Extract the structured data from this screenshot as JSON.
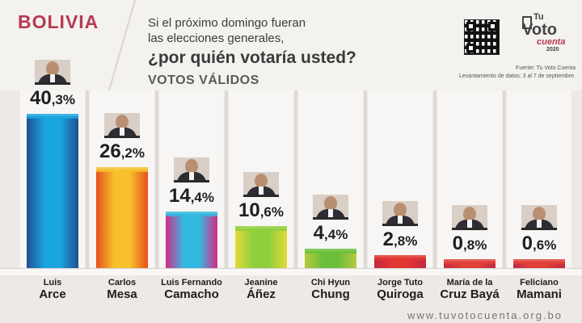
{
  "header": {
    "country": "BOLIVIA",
    "question_line1": "Si el próximo domingo fueran",
    "question_line2": "las elecciones generales,",
    "question_main": "¿por quién votaría usted?",
    "subtitle": "VOTOS VÁLIDOS",
    "source": "Fuente: Tu Voto Cuenta",
    "survey_dates": "Levantamiento de datos: 3 al 7 de septiembre."
  },
  "logo": {
    "tu": "Tu",
    "voto": "Voto",
    "cuenta": "cuenta",
    "year": "2020"
  },
  "footer": {
    "url": "www.tuvotocuenta.org.bo"
  },
  "chart_data": {
    "type": "bar",
    "categories": [
      "Luis Arce",
      "Carlos Mesa",
      "Luis Fernando Camacho",
      "Jeanine Áñez",
      "Chi Hyun Chung",
      "Jorge Tuto Quiroga",
      "María de la Cruz Bayá",
      "Feliciano Mamani"
    ],
    "values": [
      40.3,
      26.2,
      14.4,
      10.6,
      4.4,
      2.8,
      0.8,
      0.6
    ],
    "value_labels": [
      {
        "int": "40",
        "dec": ",3%"
      },
      {
        "int": "26",
        "dec": ",2%"
      },
      {
        "int": "14",
        "dec": ",4%"
      },
      {
        "int": "10",
        "dec": ",6%"
      },
      {
        "int": "4",
        "dec": ",4%"
      },
      {
        "int": "2",
        "dec": ",8%"
      },
      {
        "int": "0",
        "dec": ",8%"
      },
      {
        "int": "0",
        "dec": ",6%"
      }
    ],
    "name_lines": [
      {
        "first": "Luis",
        "last": "Arce"
      },
      {
        "first": "Carlos",
        "last": "Mesa"
      },
      {
        "first": "Luis Fernando",
        "last": "Camacho"
      },
      {
        "first": "Jeanine",
        "last": "Áñez"
      },
      {
        "first": "Chi Hyun",
        "last": "Chung"
      },
      {
        "first": "Jorge Tuto",
        "last": "Quiroga"
      },
      {
        "first": "María de la",
        "last": "Cruz Bayá"
      },
      {
        "first": "Feliciano",
        "last": "Mamani"
      }
    ],
    "colors": [
      [
        "#1aa5e0",
        "#1f4f8f"
      ],
      [
        "#f7c12b",
        "#e8501e"
      ],
      [
        "#33b9e0",
        "#d62b8a"
      ],
      [
        "#8fcf3e",
        "#e6d83a"
      ],
      [
        "#6bbf3a",
        "#b8c940"
      ],
      [
        "#e2352f",
        "#c02a44"
      ],
      [
        "#e24038",
        "#c02a44"
      ],
      [
        "#e24038",
        "#c02a44"
      ]
    ],
    "ylim": [
      0,
      45
    ]
  }
}
